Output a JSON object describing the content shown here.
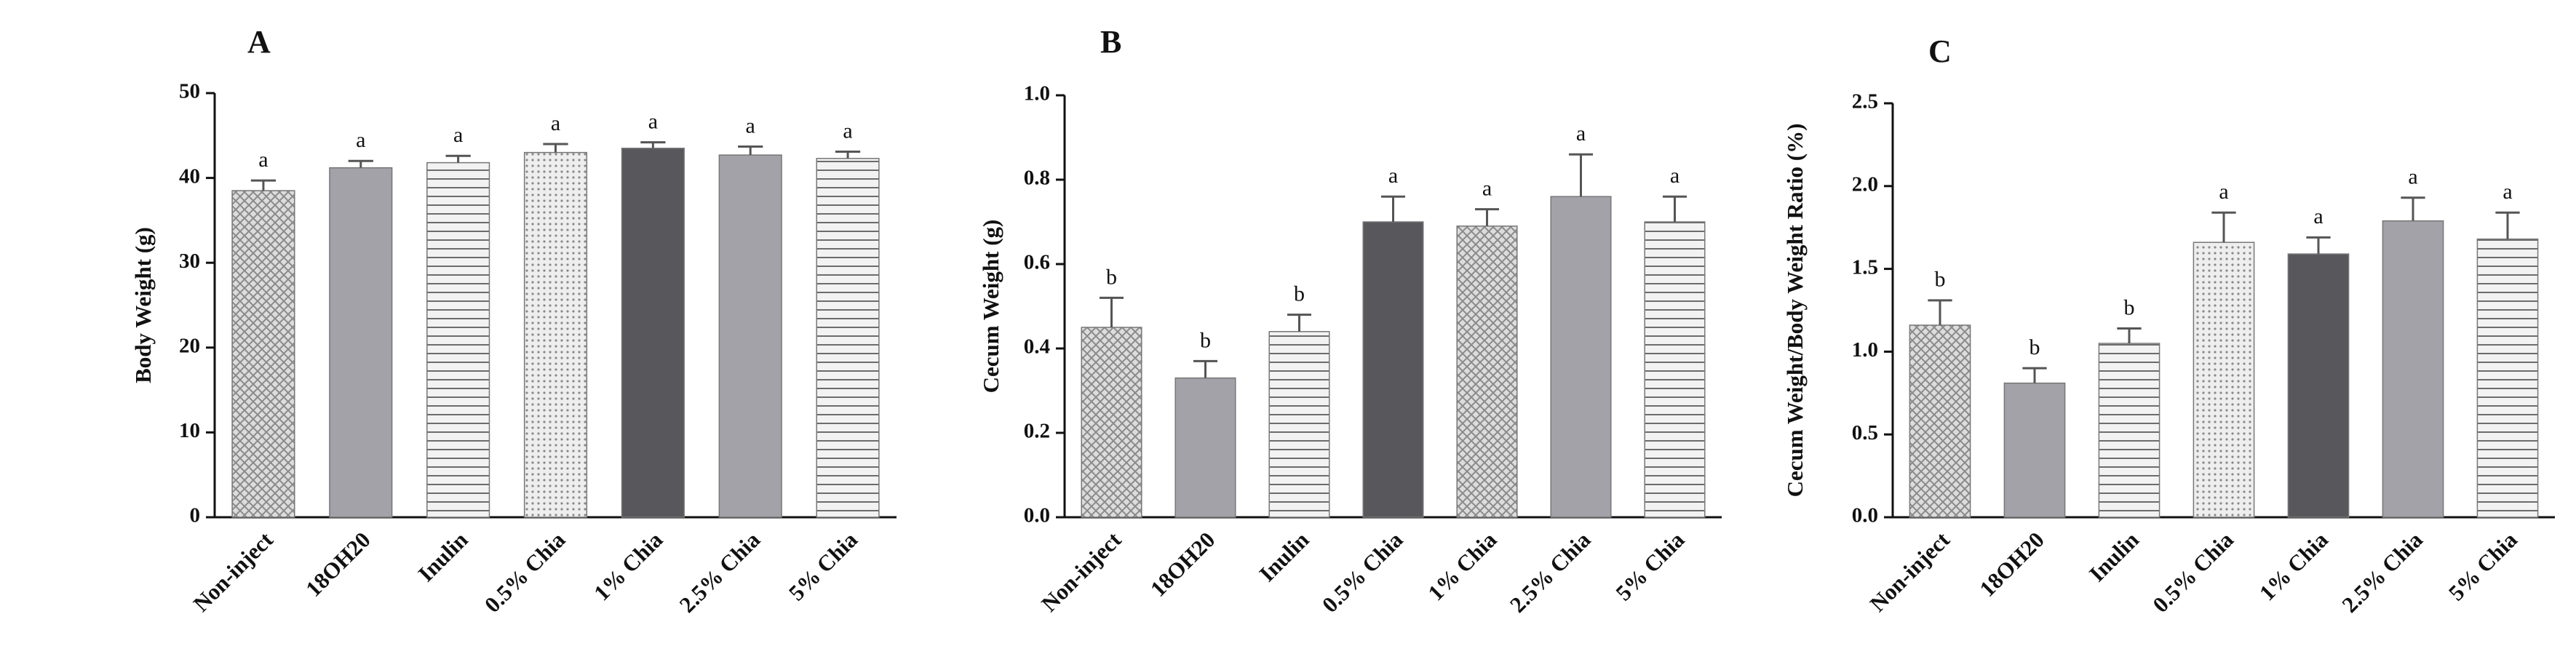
{
  "chart_data": [
    {
      "type": "bar",
      "panel": "A",
      "ylabel": "Body Weight (g)",
      "categories": [
        "Non-inject",
        "18OH20",
        "Inulin",
        "0.5% Chia",
        "1% Chia",
        "2.5% Chia",
        "5% Chia"
      ],
      "values": [
        38.5,
        41.2,
        41.8,
        43,
        43.5,
        42.7,
        42.3
      ],
      "errors": [
        1.2,
        0.8,
        0.8,
        1.0,
        0.7,
        1.0,
        0.8
      ],
      "annotations": [
        "a",
        "a",
        "a",
        "a",
        "a",
        "a",
        "a"
      ],
      "fills": [
        "crosshatch",
        "gray",
        "hstripes",
        "dots",
        "dark",
        "gray",
        "hstripes"
      ],
      "ylim": [
        0,
        50
      ],
      "yticks": [
        0,
        10,
        20,
        30,
        40,
        50
      ]
    },
    {
      "type": "bar",
      "panel": "B",
      "ylabel": "Cecum Weight (g)",
      "categories": [
        "Non-inject",
        "18OH20",
        "Inulin",
        "0.5% Chia",
        "1% Chia",
        "2.5% Chia",
        "5% Chia"
      ],
      "values": [
        0.45,
        0.33,
        0.44,
        0.7,
        0.69,
        0.76,
        0.7
      ],
      "errors": [
        0.07,
        0.04,
        0.04,
        0.06,
        0.04,
        0.1,
        0.06
      ],
      "annotations": [
        "b",
        "b",
        "b",
        "a",
        "a",
        "a",
        "a"
      ],
      "fills": [
        "crosshatch",
        "gray",
        "hstripes",
        "dark",
        "crosshatch",
        "gray",
        "hstripes"
      ],
      "ylim": [
        0,
        1
      ],
      "yticks": [
        {
          "value": 0,
          "label": "0.0"
        },
        0.2,
        0.4,
        0.6,
        0.8,
        {
          "value": 1,
          "label": "1.0"
        }
      ]
    },
    {
      "type": "bar",
      "panel": "C",
      "ylabel": "Cecum Weight/Body Weight Ratio (%)",
      "categories": [
        "Non-inject",
        "18OH20",
        "Inulin",
        "0.5% Chia",
        "1% Chia",
        "2.5% Chia",
        "5% Chia"
      ],
      "values": [
        1.16,
        0.81,
        1.05,
        1.66,
        1.59,
        1.79,
        1.68
      ],
      "errors": [
        0.15,
        0.09,
        0.09,
        0.18,
        0.1,
        0.14,
        0.16
      ],
      "annotations": [
        "b",
        "b",
        "b",
        "a",
        "a",
        "a",
        "a"
      ],
      "fills": [
        "crosshatch",
        "gray",
        "hstripes",
        "dots",
        "dark",
        "gray",
        "hstripes"
      ],
      "ylim": [
        0,
        2.5
      ],
      "yticks": [
        {
          "value": 0,
          "label": "0.0"
        },
        0.5,
        {
          "value": 1,
          "label": "1.0"
        },
        1.5,
        {
          "value": 2,
          "label": "2.0"
        },
        2.5
      ]
    }
  ]
}
